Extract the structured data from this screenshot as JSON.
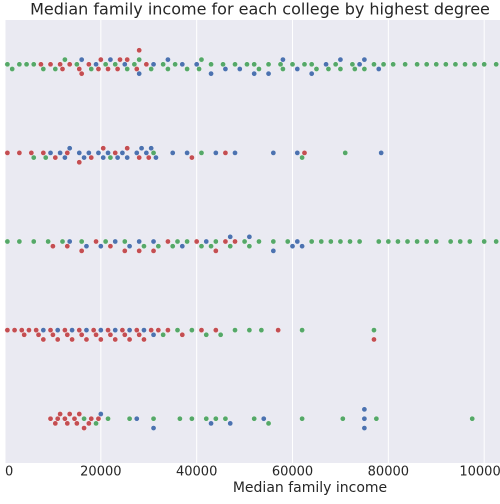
{
  "chart_data": {
    "type": "swarm",
    "title": "Median family income for each college by highest degree",
    "xlabel": "Median family income",
    "categories": [
      null,
      null,
      null,
      null,
      null
    ],
    "xlim": [
      0,
      103300
    ],
    "xticks": [
      0,
      20000,
      40000,
      60000,
      80000,
      100000
    ],
    "grid": true,
    "series": [
      {
        "color": "#55a868",
        "values": [
          [
            500,
            1500,
            3000,
            4500,
            6000,
            8000,
            10500,
            12500,
            15000,
            18000,
            21000,
            23000,
            25500,
            28000,
            30500,
            33000,
            35500,
            38000,
            40500,
            43000,
            45500,
            48000,
            50500,
            53000,
            55000,
            57500,
            60000,
            62500,
            65000,
            67500,
            70000,
            72500,
            75000,
            77000,
            79000,
            81000,
            83500,
            86000,
            88000,
            90000,
            92000,
            94000,
            96000,
            98000,
            100000,
            102500,
            27000,
            34000,
            41000,
            52000,
            58000,
            64000,
            69000,
            73000
          ],
          [
            6000,
            8500,
            22000,
            31000,
            41000,
            62000,
            71000
          ],
          [
            500,
            3000,
            6000,
            9000,
            12000,
            16000,
            21000,
            25000,
            29000,
            32000,
            35000,
            38000,
            41000,
            44000,
            47000,
            50000,
            53000,
            56000,
            59000,
            64000,
            66000,
            68000,
            70000,
            72000,
            74000,
            78000,
            80000,
            82000,
            84000,
            86000,
            88000,
            90000,
            93000,
            95000,
            97000,
            100000,
            102500,
            36000,
            43000,
            51000
          ],
          [
            33000,
            36000,
            39000,
            42000,
            45000,
            48000,
            51000,
            53500,
            62000,
            77000
          ],
          [
            16500,
            19000,
            21500,
            26000,
            31000,
            36500,
            39000,
            42000,
            44000,
            46000,
            52000,
            55000,
            62000,
            70500,
            77500,
            97500
          ]
        ]
      },
      {
        "color": "#4c72b0",
        "values": [
          [
            16000,
            19000,
            22000,
            25000,
            28000,
            31000,
            34000,
            37000,
            40000,
            43000,
            46000,
            49000,
            52000,
            55000,
            58000,
            61000,
            64000,
            67000,
            70000,
            74000,
            75000,
            78000
          ],
          [
            9500,
            11500,
            13500,
            15500,
            17500,
            19500,
            21500,
            23500,
            25500,
            27500,
            29500,
            31500,
            12500,
            16500,
            20500,
            24500,
            28500,
            30500,
            35000,
            38000,
            44000,
            48000,
            56000,
            61000,
            78500
          ],
          [
            13500,
            17000,
            20000,
            23000,
            26000,
            28000,
            31000,
            37000,
            42000,
            47000,
            51000,
            56000,
            60000,
            61000,
            62000
          ],
          [
            8000,
            11000,
            14000,
            17000,
            20000,
            23000,
            26000,
            29000,
            31000
          ],
          [
            20000,
            27500,
            31000,
            43000,
            47000,
            54000,
            75000,
            75000,
            75000
          ]
        ]
      },
      {
        "color": "#c44e52",
        "values": [
          [
            7500,
            9500,
            11500,
            13500,
            15500,
            17500,
            19500,
            21500,
            23500,
            25500,
            27500,
            29500,
            12000,
            16000,
            20000,
            24000,
            28000
          ],
          [
            500,
            3000,
            5500,
            8000,
            10500,
            13000,
            15500,
            18000,
            20500,
            23000,
            25500,
            28000,
            30000,
            39000,
            46000,
            62500
          ],
          [
            10000,
            13000,
            16000,
            19000,
            22000,
            25000,
            28000,
            31000,
            34000,
            40000,
            44000,
            46000,
            48000
          ],
          [
            500,
            2000,
            3500,
            5000,
            6500,
            8000,
            9500,
            11000,
            12500,
            14000,
            15500,
            17000,
            18500,
            20000,
            21500,
            23000,
            24500,
            26000,
            27500,
            29000,
            30500,
            32000,
            4000,
            7000,
            10000,
            13000,
            16000,
            19000,
            22000,
            25000,
            28000,
            34000,
            37000,
            41000,
            44000,
            57000,
            77000
          ],
          [
            9500,
            10500,
            11500,
            12500,
            13500,
            14500,
            15500,
            16500,
            18000,
            19500,
            11000,
            13000,
            15000,
            17500
          ]
        ]
      }
    ]
  }
}
